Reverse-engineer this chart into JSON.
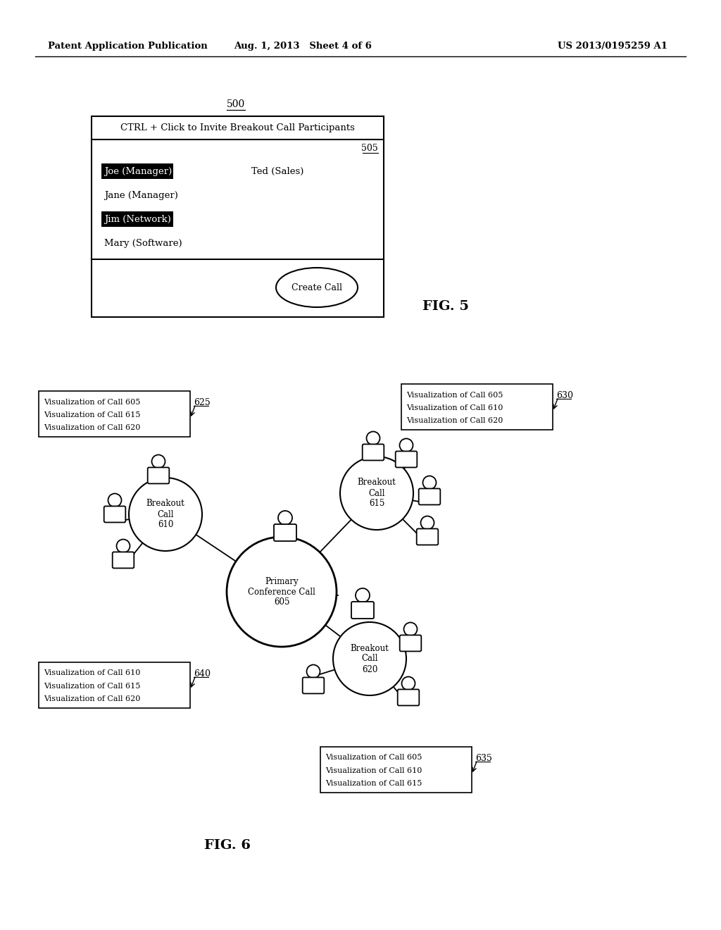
{
  "header_left": "Patent Application Publication",
  "header_mid": "Aug. 1, 2013   Sheet 4 of 6",
  "header_right": "US 2013/0195259 A1",
  "fig5_label": "500",
  "fig5_ref": "505",
  "fig5_title": "CTRL + Click to Invite Breakout Call Participants",
  "fig5_names_left": [
    "Joe (Manager)",
    "Jane (Manager)",
    "Jim (Network)",
    "Mary (Software)"
  ],
  "fig5_names_right": [
    "Ted (Sales)"
  ],
  "fig5_highlighted": [
    "Joe (Manager)",
    "Jim (Network)"
  ],
  "fig5_button": "Create Call",
  "fig5_caption": "FIG. 5",
  "fig6_caption": "FIG. 6",
  "primary_label": "Primary\nConference Call\n605",
  "breakout_610": "Breakout\nCall\n610",
  "breakout_615": "Breakout\nCall\n615",
  "breakout_620": "Breakout\nCall\n620",
  "box_625_lines": [
    "Visualization of Call 605",
    "Visualization of Call 615",
    "Visualization of Call 620"
  ],
  "box_625_ref": "625",
  "box_630_lines": [
    "Visualization of Call 605",
    "Visualization of Call 610",
    "Visualization of Call 620"
  ],
  "box_630_ref": "630",
  "box_635_lines": [
    "Visualization of Call 605",
    "Visualization of Call 610",
    "Visualization of Call 615"
  ],
  "box_635_ref": "635",
  "box_640_lines": [
    "Visualization of Call 610",
    "Visualization of Call 615",
    "Visualization of Call 620"
  ],
  "box_640_ref": "640",
  "bg_color": "#ffffff",
  "text_color": "#000000"
}
